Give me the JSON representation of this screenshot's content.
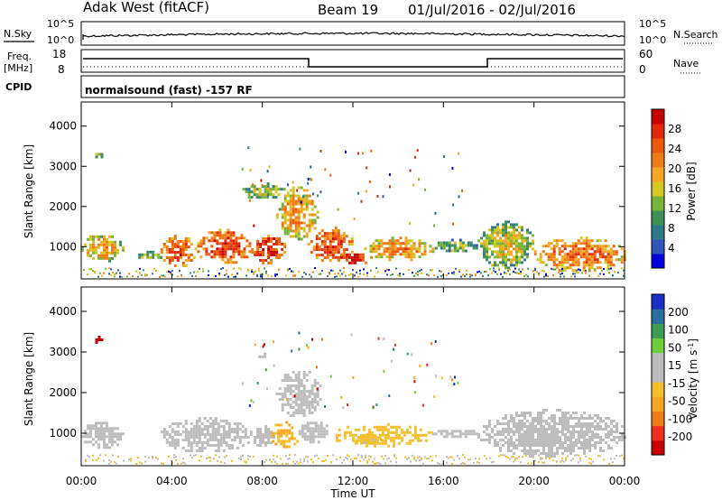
{
  "header": {
    "radar": "Adak West (fitACF)",
    "beam": "Beam 19",
    "date_range": "01/Jul/2016 - 02/Jul/2016"
  },
  "strip_panel": {
    "nsky_label": "N.Sky",
    "nsearch_label": "N.Search",
    "left_ticks": [
      "10^5",
      "10^0"
    ],
    "right_ticks": [
      "10^5",
      "10^0"
    ]
  },
  "freq_panel": {
    "label": "Freq.",
    "unit": "[MHz]",
    "left_ticks": [
      "18",
      "8"
    ],
    "nave_label": "Nave",
    "right_ticks": [
      "60",
      "0"
    ]
  },
  "cpid": {
    "label": "CPID",
    "value": "normalsound (fast) -157 RF"
  },
  "colors": {
    "power_scale": [
      "#0000dd",
      "#2f55b8",
      "#2e7a8a",
      "#3f8f58",
      "#79b43a",
      "#d4c820",
      "#f5a623",
      "#f07d13",
      "#ee5a0c",
      "#e02a0a",
      "#c80000"
    ],
    "velocity_scale": [
      "#c80000",
      "#ee3020",
      "#f07d13",
      "#f5a623",
      "#f5c030",
      "#bdbdbd",
      "#bdbdbd",
      "#6fcf3a",
      "#3e9d54",
      "#2b6fa0",
      "#1a2fc8"
    ],
    "ground_scatter": "#bdbdbd"
  },
  "chart_data": [
    {
      "type": "heatmap",
      "id": "power",
      "ylabel": "Slant Range [km]",
      "yticks": [
        "1000",
        "2000",
        "3000",
        "4000"
      ],
      "ylim": [
        200,
        4600
      ],
      "xlim": [
        0,
        24
      ],
      "colorbar": {
        "label": "Power [dB]",
        "ticks": [
          "4",
          "8",
          "12",
          "16",
          "20",
          "24",
          "28"
        ],
        "range": [
          0,
          32
        ]
      },
      "regions": [
        {
          "x": [
            0.0,
            1.8
          ],
          "y": [
            650,
            1350
          ],
          "v": 14
        },
        {
          "x": [
            2.4,
            3.6
          ],
          "y": [
            700,
            900
          ],
          "v": 10
        },
        {
          "x": [
            3.5,
            5.0
          ],
          "y": [
            500,
            1300
          ],
          "v": 19
        },
        {
          "x": [
            5.0,
            7.5
          ],
          "y": [
            600,
            1450
          ],
          "v": 21
        },
        {
          "x": [
            7.5,
            9.0
          ],
          "y": [
            600,
            1300
          ],
          "v": 23
        },
        {
          "x": [
            8.6,
            10.4
          ],
          "y": [
            1200,
            2500
          ],
          "v": 15
        },
        {
          "x": [
            10.0,
            12.0
          ],
          "y": [
            650,
            1500
          ],
          "v": 20
        },
        {
          "x": [
            11.2,
            12.8
          ],
          "y": [
            600,
            900
          ],
          "v": 25
        },
        {
          "x": [
            12.5,
            15.5
          ],
          "y": [
            700,
            1250
          ],
          "v": 16
        },
        {
          "x": [
            15.5,
            17.5
          ],
          "y": [
            900,
            1200
          ],
          "v": 8
        },
        {
          "x": [
            17.5,
            20.0
          ],
          "y": [
            500,
            1650
          ],
          "v": 11
        },
        {
          "x": [
            20.0,
            24.0
          ],
          "y": [
            400,
            1250
          ],
          "v": 18
        },
        {
          "x": [
            7.0,
            9.0
          ],
          "y": [
            2200,
            2600
          ],
          "v": 10
        },
        {
          "x": [
            0.5,
            0.9
          ],
          "y": [
            3200,
            3400
          ],
          "v": 8
        }
      ]
    },
    {
      "type": "heatmap",
      "id": "velocity",
      "ylabel": "Slant Range [km]",
      "yticks": [
        "1000",
        "2000",
        "3000",
        "4000"
      ],
      "ylim": [
        200,
        4600
      ],
      "xlim": [
        0,
        24
      ],
      "colorbar": {
        "label": "Velocity [m s^-1]",
        "ticks": [
          "-200",
          "-100",
          "-50",
          "-15",
          "15",
          "50",
          "100",
          "200"
        ],
        "range": [
          -250,
          250
        ]
      },
      "regions": [
        {
          "x": [
            0.0,
            1.8
          ],
          "y": [
            650,
            1350
          ],
          "v": 0
        },
        {
          "x": [
            3.5,
            7.5
          ],
          "y": [
            550,
            1400
          ],
          "v": 0
        },
        {
          "x": [
            7.5,
            8.5
          ],
          "y": [
            700,
            1200
          ],
          "v": 0
        },
        {
          "x": [
            8.3,
            9.6
          ],
          "y": [
            650,
            1300
          ],
          "v": -70
        },
        {
          "x": [
            8.6,
            10.6
          ],
          "y": [
            1400,
            2600
          ],
          "v": 0
        },
        {
          "x": [
            9.6,
            11.0
          ],
          "y": [
            800,
            1350
          ],
          "v": 0
        },
        {
          "x": [
            11.0,
            15.5
          ],
          "y": [
            700,
            1250
          ],
          "v": -40
        },
        {
          "x": [
            12.0,
            13.2
          ],
          "y": [
            750,
            1000
          ],
          "v": -30
        },
        {
          "x": [
            15.5,
            17.5
          ],
          "y": [
            900,
            1150
          ],
          "v": 0
        },
        {
          "x": [
            17.5,
            24.0
          ],
          "y": [
            450,
            1600
          ],
          "v": 0
        },
        {
          "x": [
            0.5,
            0.9
          ],
          "y": [
            3200,
            3400
          ],
          "v": -220
        },
        {
          "x": [
            7.7,
            8.2
          ],
          "y": [
            2850,
            3050
          ],
          "v": 40
        }
      ]
    }
  ],
  "xaxis": {
    "label": "Time UT",
    "ticks": [
      "00:00",
      "04:00",
      "08:00",
      "12:00",
      "16:00",
      "20:00",
      "00:00"
    ]
  }
}
